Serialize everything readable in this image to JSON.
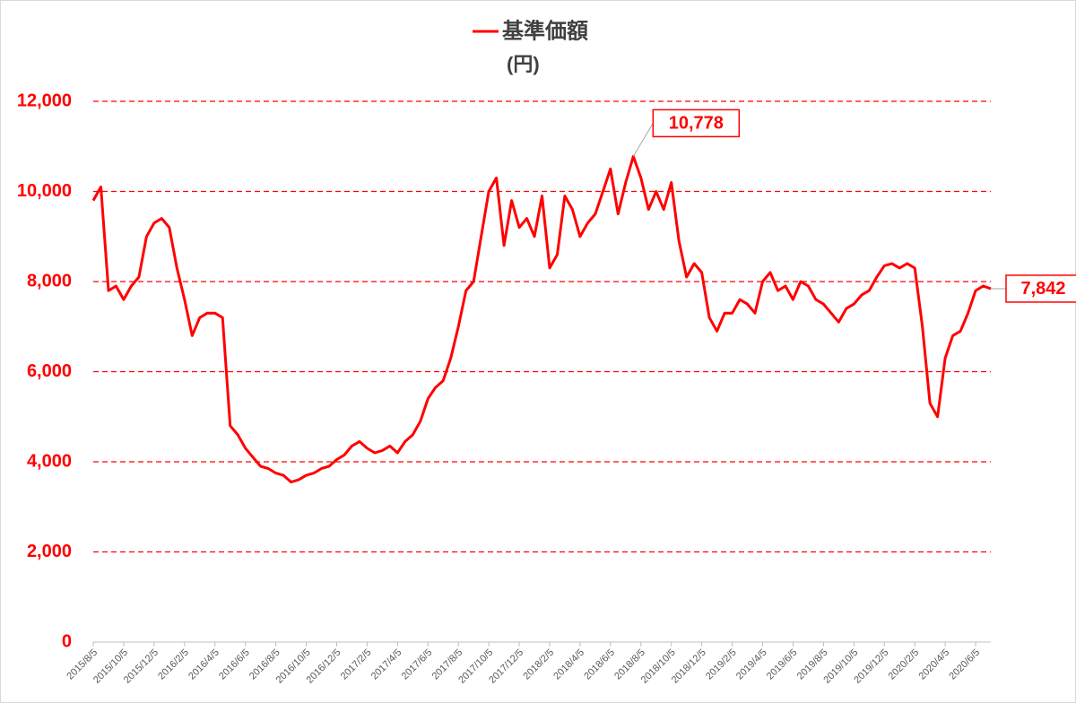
{
  "chart_data": {
    "type": "line",
    "y_label": "(円)",
    "categories": [
      "2015/8/5",
      null,
      null,
      null,
      "2015/10/5",
      null,
      null,
      null,
      "2015/12/5",
      null,
      null,
      null,
      "2016/2/5",
      null,
      null,
      null,
      "2016/4/5",
      null,
      null,
      null,
      "2016/6/5",
      null,
      null,
      null,
      "2016/8/5",
      null,
      null,
      null,
      "2016/10/5",
      null,
      null,
      null,
      "2016/12/5",
      null,
      null,
      null,
      "2017/2/5",
      null,
      null,
      null,
      "2017/4/5",
      null,
      null,
      null,
      "2017/6/5",
      null,
      null,
      null,
      "2017/8/5",
      null,
      null,
      null,
      "2017/10/5",
      null,
      null,
      null,
      "2017/12/5",
      null,
      null,
      null,
      "2018/2/5",
      null,
      null,
      null,
      "2018/4/5",
      null,
      null,
      null,
      "2018/6/5",
      null,
      null,
      null,
      "2018/8/5",
      null,
      null,
      null,
      "2018/10/5",
      null,
      null,
      null,
      "2018/12/5",
      null,
      null,
      null,
      "2019/2/5",
      null,
      null,
      null,
      "2019/4/5",
      null,
      null,
      null,
      "2019/6/5",
      null,
      null,
      null,
      "2019/8/5",
      null,
      null,
      null,
      "2019/10/5",
      null,
      null,
      null,
      "2019/12/5",
      null,
      null,
      null,
      "2020/2/5",
      null,
      null,
      null,
      "2020/4/5",
      null,
      null,
      null,
      "2020/6/5",
      null,
      null
    ],
    "series": [
      {
        "name": "基準価額",
        "color": "#ff0000",
        "values": [
          9800,
          10100,
          7800,
          7900,
          7600,
          7900,
          8100,
          9000,
          9300,
          9400,
          9200,
          8300,
          7600,
          6800,
          7200,
          7300,
          7300,
          7200,
          4800,
          4600,
          4300,
          4100,
          3900,
          3850,
          3750,
          3700,
          3550,
          3600,
          3700,
          3750,
          3850,
          3900,
          4050,
          4150,
          4350,
          4450,
          4300,
          4200,
          4250,
          4350,
          4200,
          4450,
          4600,
          4900,
          5400,
          5650,
          5800,
          6300,
          7000,
          7800,
          8000,
          9000,
          10000,
          10300,
          8800,
          9800,
          9200,
          9400,
          9000,
          9900,
          8300,
          8600,
          9900,
          9600,
          9000,
          9300,
          9500,
          10000,
          10500,
          9500,
          10200,
          10778,
          10300,
          9600,
          10000,
          9600,
          10200,
          8900,
          8100,
          8400,
          8200,
          7200,
          6900,
          7300,
          7300,
          7600,
          7500,
          7300,
          8000,
          8200,
          7800,
          7900,
          7600,
          8000,
          7900,
          7600,
          7500,
          7300,
          7100,
          7400,
          7500,
          7700,
          7800,
          8100,
          8350,
          8400,
          8300,
          8400,
          8300,
          7000,
          5300,
          5000,
          6300,
          6800,
          6900,
          7300,
          7800,
          7900,
          7842
        ],
        "value_labels": [
          null,
          null,
          null,
          null,
          null,
          null,
          null,
          null,
          null,
          null,
          null,
          null,
          null,
          null,
          null,
          null,
          null,
          null,
          null,
          null,
          null,
          null,
          null,
          null,
          null,
          null,
          null,
          null,
          null,
          null,
          null,
          null,
          null,
          null,
          null,
          null,
          null,
          null,
          null,
          null,
          null,
          null,
          null,
          null,
          null,
          null,
          null,
          null,
          null,
          null,
          null,
          null,
          null,
          null,
          null,
          null,
          null,
          null,
          null,
          null,
          null,
          null,
          null,
          null,
          null,
          null,
          null,
          null,
          null,
          null,
          null,
          "10,778",
          null,
          null,
          null,
          null,
          null,
          null,
          null,
          null,
          null,
          null,
          null,
          null,
          null,
          null,
          null,
          null,
          null,
          null,
          null,
          null,
          null,
          null,
          null,
          null,
          null,
          null,
          null,
          null,
          null,
          null,
          null,
          null,
          null,
          null,
          null,
          null,
          null,
          null,
          null,
          null,
          null,
          null,
          null,
          null,
          null,
          null,
          "7,842"
        ]
      }
    ],
    "ylim": [
      0,
      12000
    ],
    "yticks": [
      0,
      {
        "value": 2000,
        "label": "2,000"
      },
      {
        "value": 4000,
        "label": "4,000"
      },
      {
        "value": 6000,
        "label": "6,000"
      },
      {
        "value": 8000,
        "label": "8,000"
      },
      {
        "value": 10000,
        "label": "10,000"
      },
      {
        "value": 12000,
        "label": "12,000"
      }
    ],
    "grid": true
  }
}
